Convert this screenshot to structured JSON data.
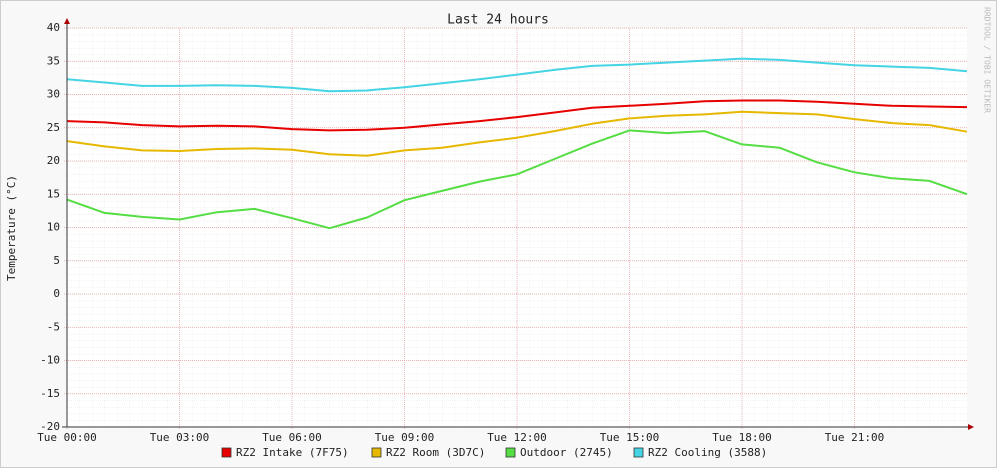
{
  "chart_data": {
    "type": "line",
    "title": "Last 24 hours",
    "y_label": "Temperature (°C)",
    "watermark": "RRDTOOL / TOBI OETIKER",
    "x": [
      0,
      1,
      2,
      3,
      4,
      5,
      6,
      7,
      8,
      9,
      10,
      11,
      12,
      13,
      14,
      15,
      16,
      17,
      18,
      19,
      20,
      21,
      22,
      23,
      24
    ],
    "xlim": [
      0,
      24
    ],
    "xticks": [
      {
        "value": 0,
        "label": "Tue 00:00"
      },
      {
        "value": 3,
        "label": "Tue 03:00"
      },
      {
        "value": 6,
        "label": "Tue 06:00"
      },
      {
        "value": 9,
        "label": "Tue 09:00"
      },
      {
        "value": 12,
        "label": "Tue 12:00"
      },
      {
        "value": 15,
        "label": "Tue 15:00"
      },
      {
        "value": 18,
        "label": "Tue 18:00"
      },
      {
        "value": 21,
        "label": "Tue 21:00"
      }
    ],
    "ylim": [
      -20,
      40
    ],
    "yticks": [
      -20,
      -15,
      -10,
      -5,
      0,
      5,
      10,
      15,
      20,
      25,
      30,
      35,
      40
    ],
    "grid": true,
    "series": [
      {
        "name": "RZ2 Intake (7F75)",
        "color": "#e60000",
        "values": [
          26,
          25.8,
          25.4,
          25.2,
          25.3,
          25.2,
          24.8,
          24.6,
          24.7,
          25.0,
          25.5,
          26,
          26.6,
          27.3,
          28,
          28.3,
          28.6,
          29,
          29.1,
          29.1,
          28.9,
          28.6,
          28.3,
          28.2,
          28.1
        ]
      },
      {
        "name": "RZ2 Room (3D7C)",
        "color": "#e6b800",
        "values": [
          23,
          22.2,
          21.6,
          21.5,
          21.8,
          21.9,
          21.7,
          21.0,
          20.8,
          21.6,
          22.0,
          22.8,
          23.5,
          24.5,
          25.6,
          26.4,
          26.8,
          27.0,
          27.4,
          27.2,
          27.0,
          26.3,
          25.7,
          25.4,
          24.4
        ]
      },
      {
        "name": "Outdoor (2745)",
        "color": "#55dd44",
        "values": [
          14.2,
          12.2,
          11.6,
          11.2,
          12.3,
          12.8,
          11.4,
          9.9,
          11.5,
          14.1,
          15.5,
          16.9,
          18.0,
          20.3,
          22.6,
          24.6,
          24.2,
          24.5,
          22.5,
          22.0,
          19.8,
          18.3,
          17.4,
          17.0,
          15.0
        ]
      },
      {
        "name": "RZ2 Cooling (3588)",
        "color": "#44d4e4",
        "values": [
          32.3,
          31.8,
          31.3,
          31.3,
          31.4,
          31.3,
          31.0,
          30.5,
          30.6,
          31.1,
          31.7,
          32.3,
          33.0,
          33.7,
          34.3,
          34.5,
          34.8,
          35.1,
          35.4,
          35.2,
          34.8,
          34.4,
          34.2,
          34.0,
          33.5
        ]
      }
    ]
  }
}
